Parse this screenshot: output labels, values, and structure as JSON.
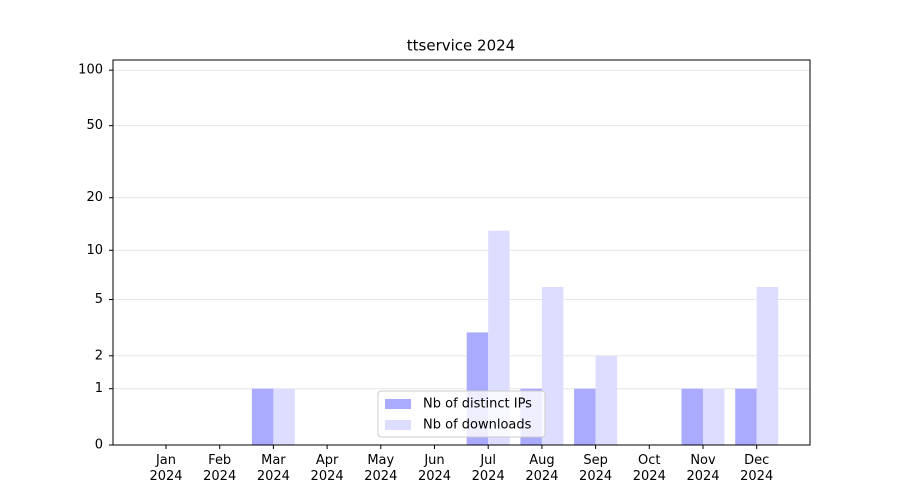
{
  "chart_data": {
    "type": "bar",
    "title": "ttservice 2024",
    "categories": [
      "Jan\n2024",
      "Feb\n2024",
      "Mar\n2024",
      "Apr\n2024",
      "May\n2024",
      "Jun\n2024",
      "Jul\n2024",
      "Aug\n2024",
      "Sep\n2024",
      "Oct\n2024",
      "Nov\n2024",
      "Dec\n2024"
    ],
    "series": [
      {
        "name": "Nb of distinct IPs",
        "color": "#aaaaff",
        "values": [
          0,
          0,
          1,
          0,
          0,
          0,
          3,
          1,
          1,
          0,
          1,
          1
        ]
      },
      {
        "name": "Nb of downloads",
        "color": "#ddddff",
        "values": [
          0,
          0,
          1,
          0,
          0,
          0,
          13,
          6,
          2,
          0,
          1,
          6
        ]
      }
    ],
    "yscale": "log1p",
    "ylim": [
      0,
      113.5
    ],
    "yticks": [
      0,
      1,
      2,
      5,
      10,
      20,
      50,
      100
    ],
    "grid": true,
    "legend": "lower center"
  }
}
